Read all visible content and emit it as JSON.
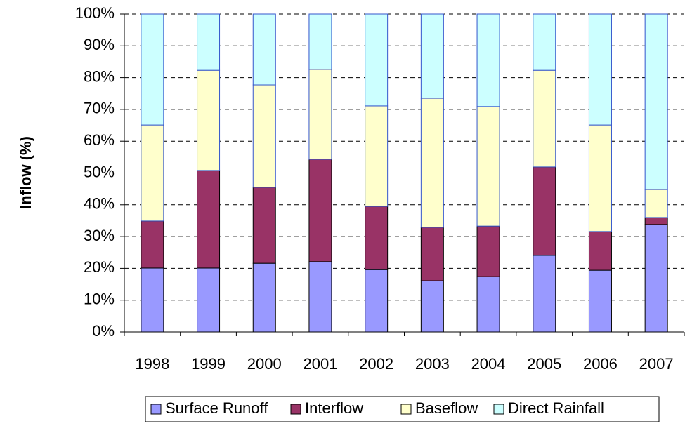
{
  "chart_data": {
    "type": "stacked_bar",
    "y_label": "Inflow (%)",
    "categories": [
      "1998",
      "1999",
      "2000",
      "2001",
      "2002",
      "2003",
      "2004",
      "2005",
      "2006",
      "2007"
    ],
    "series": [
      {
        "name": "Surface Runoff",
        "color": "#9999ff",
        "values": [
          20.1,
          20.1,
          21.6,
          22.1,
          19.6,
          16.1,
          17.4,
          24.1,
          19.4,
          33.8
        ]
      },
      {
        "name": "Interflow",
        "color": "#993366",
        "values": [
          14.8,
          30.7,
          23.9,
          32.2,
          19.9,
          16.8,
          15.9,
          27.8,
          12.2,
          2.2
        ]
      },
      {
        "name": "Baseflow",
        "color": "#ffffcc",
        "values": [
          30.2,
          31.5,
          32.2,
          28.3,
          31.6,
          40.6,
          37.6,
          30.4,
          33.5,
          8.8
        ]
      },
      {
        "name": "Direct Rainfall",
        "color": "#ccffff",
        "values": [
          34.9,
          17.7,
          22.3,
          17.4,
          28.9,
          26.5,
          29.1,
          17.7,
          34.9,
          55.2
        ]
      }
    ],
    "ylim": [
      0,
      100
    ],
    "yticks": [
      {
        "value": 0,
        "label": "0%"
      },
      {
        "value": 10,
        "label": "10%"
      },
      {
        "value": 20,
        "label": "20%"
      },
      {
        "value": 30,
        "label": "30%"
      },
      {
        "value": 40,
        "label": "40%"
      },
      {
        "value": 50,
        "label": "50%"
      },
      {
        "value": 60,
        "label": "60%"
      },
      {
        "value": 70,
        "label": "70%"
      },
      {
        "value": 80,
        "label": "80%"
      },
      {
        "value": 90,
        "label": "90%"
      },
      {
        "value": 100,
        "label": "100%"
      }
    ],
    "grid": true,
    "legend": "bottom"
  }
}
